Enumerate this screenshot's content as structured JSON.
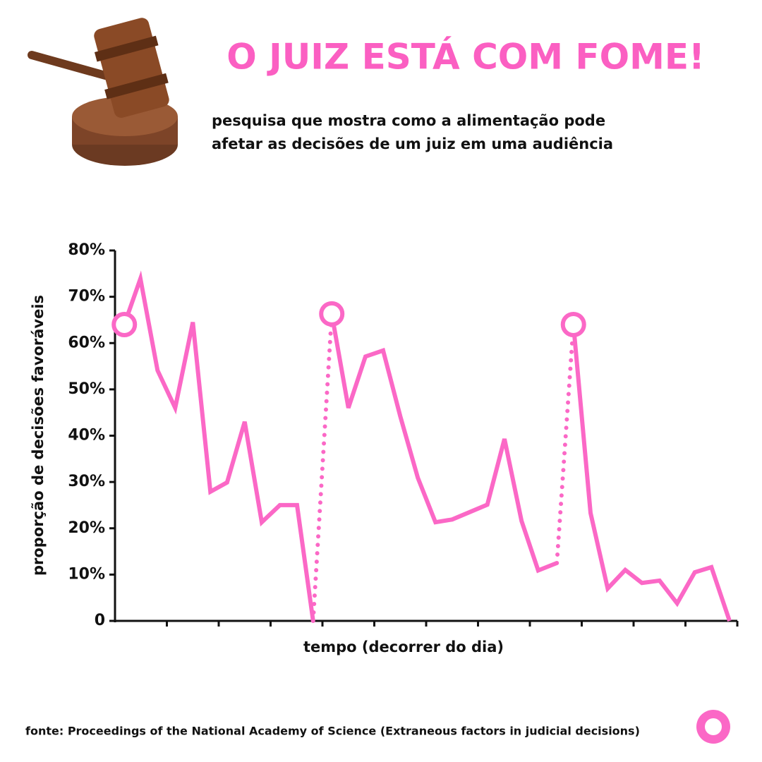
{
  "chart_data": {
    "type": "line",
    "title": "O JUIZ ESTÁ COM FOME!",
    "subtitle": [
      "pesquisa que mostra como a alimentação pode",
      "afetar as decisões de um juiz em uma audiência"
    ],
    "ylabel": "proporção de decisões favoráveis",
    "xlabel": "tempo (decorrer do dia)",
    "source": "fonte: Proceedings of the National Academy of Science (Extraneous factors in judicial decisions)",
    "color": "#fb68c6",
    "xlim": [
      0,
      12
    ],
    "xticks": [
      1,
      2,
      3,
      4,
      5,
      6,
      7,
      8,
      9,
      10,
      11,
      12
    ],
    "ylim": [
      0,
      80
    ],
    "yticks": [
      0,
      {
        "value": 10,
        "label": "10%"
      },
      {
        "value": 20,
        "label": "20%"
      },
      {
        "value": 30,
        "label": "30%"
      },
      {
        "value": 40,
        "label": "40%"
      },
      {
        "value": 50,
        "label": "50%"
      },
      {
        "value": 60,
        "label": "60%"
      },
      {
        "value": 70,
        "label": "70%"
      },
      {
        "value": 80,
        "label": "80%"
      }
    ],
    "series": [
      {
        "x": [
          0.18,
          0.49,
          0.82,
          1.16,
          1.5,
          1.84,
          2.16,
          2.5,
          2.83,
          3.18,
          3.51,
          3.82
        ],
        "values": [
          64.0,
          73.9,
          54.1,
          46.0,
          64.5,
          27.9,
          29.9,
          43.0,
          21.3,
          25.0,
          25.0,
          0
        ]
      },
      {
        "x": [
          4.18,
          4.5,
          4.83,
          5.17,
          5.5,
          5.84,
          6.18,
          6.5,
          6.84,
          7.18,
          7.51,
          7.84,
          8.16,
          8.52
        ],
        "values": [
          66.3,
          46.0,
          57.1,
          58.4,
          44.2,
          30.9,
          21.3,
          21.9,
          23.5,
          25.1,
          39.3,
          21.6,
          10.9,
          12.5
        ]
      },
      {
        "x": [
          8.84,
          9.17,
          9.5,
          9.84,
          10.16,
          10.5,
          10.84,
          11.18,
          11.5,
          11.85
        ],
        "values": [
          64.0,
          23.3,
          7.0,
          11.0,
          8.2,
          8.7,
          3.8,
          10.5,
          11.6,
          0
        ]
      }
    ]
  }
}
